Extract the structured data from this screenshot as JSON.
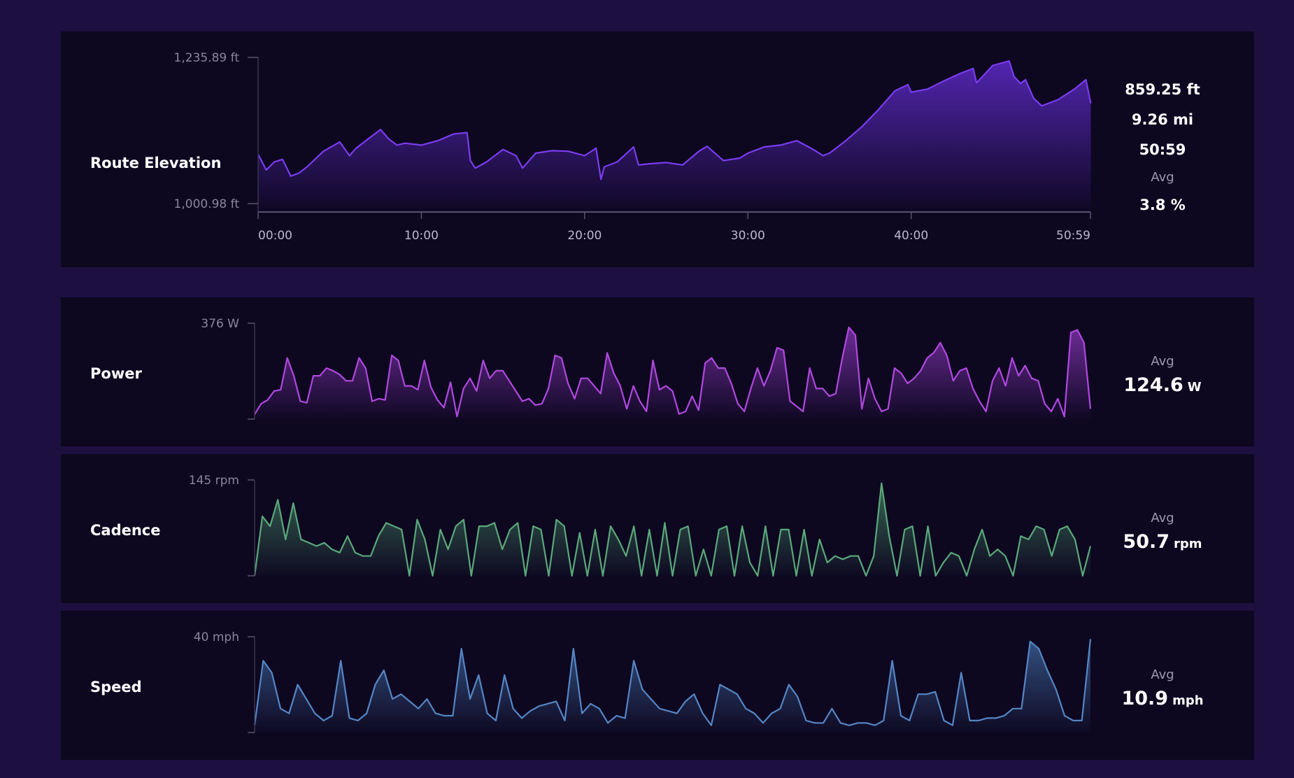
{
  "elevation": {
    "title": "Route Elevation",
    "stats": {
      "elevation": "859.25 ft",
      "distance": "9.26 mi",
      "duration": "50:59",
      "avg_label": "Avg",
      "avg_grade": "3.8 %"
    },
    "color": "#6a2fe0"
  },
  "power": {
    "title": "Power",
    "avg_label": "Avg",
    "avg_value": "124.6",
    "avg_unit": "W",
    "ymax_label": "376 W",
    "color": "#a040d6"
  },
  "cadence": {
    "title": "Cadence",
    "avg_label": "Avg",
    "avg_value": "50.7",
    "avg_unit": "rpm",
    "ymax_label": "145 rpm",
    "color": "#4f9a70"
  },
  "speed": {
    "title": "Speed",
    "avg_label": "Avg",
    "avg_value": "10.9",
    "avg_unit": "mph",
    "ymax_label": "40 mph",
    "color": "#4a7ab8"
  },
  "chart_data": [
    {
      "type": "area",
      "title": "Route Elevation",
      "x_unit": "minutes",
      "xtick_labels": [
        "00:00",
        "10:00",
        "20:00",
        "30:00",
        "40:00",
        "50:59"
      ],
      "xticks": [
        0,
        10,
        20,
        30,
        40,
        50.98
      ],
      "ytick_labels": [
        "1,235.89 ft",
        "1,000.98 ft"
      ],
      "ylim": [
        1000.98,
        1235.89
      ],
      "x": [
        0,
        0.5,
        1,
        1.5,
        2,
        2.5,
        3,
        4,
        5,
        5.6,
        6,
        7,
        7.5,
        8,
        8.5,
        9,
        10,
        11,
        12,
        12.8,
        13,
        13.3,
        14,
        15,
        15.8,
        16.2,
        17,
        18,
        19,
        20,
        20.7,
        21,
        21.2,
        22,
        23,
        23.3,
        24,
        25,
        26,
        27,
        27.5,
        28.5,
        29.5,
        30,
        31,
        32,
        33,
        34,
        34.6,
        35,
        36,
        37,
        38,
        39,
        39.8,
        40,
        41,
        42,
        43,
        43.8,
        44,
        45,
        46,
        46.3,
        46.7,
        47,
        47.5,
        48,
        49,
        50,
        50.7,
        51
      ],
      "y": [
        1080,
        1055,
        1068,
        1072,
        1045,
        1050,
        1060,
        1085,
        1100,
        1078,
        1090,
        1110,
        1120,
        1105,
        1095,
        1098,
        1095,
        1102,
        1113,
        1115,
        1070,
        1058,
        1068,
        1088,
        1078,
        1058,
        1082,
        1086,
        1085,
        1078,
        1090,
        1040,
        1060,
        1068,
        1092,
        1063,
        1065,
        1067,
        1063,
        1085,
        1093,
        1070,
        1074,
        1082,
        1092,
        1095,
        1102,
        1088,
        1078,
        1082,
        1102,
        1125,
        1152,
        1182,
        1192,
        1180,
        1185,
        1198,
        1210,
        1218,
        1195,
        1223,
        1230,
        1205,
        1194,
        1200,
        1170,
        1158,
        1168,
        1185,
        1200,
        1162
      ]
    },
    {
      "type": "area",
      "title": "Power",
      "ylim": [
        0,
        376
      ],
      "ymax_label": "376 W",
      "description_note": "",
      "series": [
        {
          "values": [
            18,
            60,
            75,
            110,
            115,
            240,
            170,
            70,
            64,
            170,
            170,
            200,
            190,
            175,
            150,
            150,
            240,
            200,
            70,
            80,
            75,
            250,
            230,
            130,
            130,
            115,
            230,
            125,
            75,
            45,
            145,
            10,
            120,
            160,
            110,
            230,
            160,
            190,
            190,
            150,
            110,
            70,
            80,
            55,
            60,
            120,
            250,
            240,
            140,
            80,
            160,
            160,
            130,
            100,
            260,
            180,
            130,
            40,
            130,
            70,
            30,
            230,
            115,
            130,
            110,
            20,
            30,
            90,
            35,
            220,
            240,
            200,
            200,
            140,
            60,
            30,
            120,
            200,
            130,
            190,
            280,
            270,
            70,
            50,
            30,
            200,
            120,
            120,
            90,
            100,
            240,
            360,
            330,
            40,
            160,
            80,
            30,
            40,
            200,
            180,
            140,
            160,
            190,
            240,
            260,
            300,
            250,
            150,
            190,
            200,
            120,
            70,
            30,
            150,
            200,
            130,
            240,
            170,
            210,
            160,
            150,
            60,
            30,
            80,
            10,
            340,
            350,
            300,
            40
          ]
        }
      ]
    },
    {
      "type": "area",
      "title": "Cadence",
      "ylim": [
        0,
        145
      ],
      "ymax_label": "145 rpm",
      "series": [
        {
          "values": [
            0,
            90,
            75,
            115,
            55,
            110,
            55,
            50,
            45,
            50,
            40,
            35,
            60,
            35,
            30,
            30,
            60,
            80,
            75,
            70,
            0,
            85,
            55,
            0,
            70,
            40,
            75,
            85,
            0,
            75,
            75,
            80,
            40,
            70,
            80,
            0,
            75,
            70,
            0,
            85,
            75,
            0,
            65,
            0,
            70,
            0,
            75,
            55,
            30,
            75,
            0,
            70,
            0,
            80,
            0,
            70,
            75,
            0,
            40,
            0,
            70,
            75,
            0,
            75,
            20,
            0,
            75,
            0,
            70,
            70,
            0,
            70,
            0,
            55,
            20,
            30,
            25,
            30,
            30,
            0,
            30,
            140,
            60,
            0,
            70,
            75,
            0,
            75,
            0,
            20,
            35,
            30,
            0,
            40,
            70,
            30,
            40,
            30,
            0,
            60,
            55,
            75,
            70,
            30,
            70,
            75,
            55,
            0,
            45
          ]
        }
      ]
    },
    {
      "type": "area",
      "title": "Speed",
      "ylim": [
        0,
        40
      ],
      "ymax_label": "40 mph",
      "series": [
        {
          "values": [
            3,
            30,
            25,
            10,
            8,
            20,
            14,
            8,
            5,
            7,
            30,
            6,
            5,
            8,
            20,
            26,
            14,
            16,
            13,
            10,
            14,
            8,
            7,
            7,
            35,
            14,
            24,
            8,
            5,
            24,
            10,
            6,
            9,
            11,
            12,
            13,
            5,
            35,
            8,
            12,
            10,
            4,
            7,
            6,
            30,
            18,
            14,
            10,
            9,
            8,
            13,
            16,
            8,
            3,
            20,
            18,
            16,
            10,
            8,
            4,
            8,
            10,
            20,
            15,
            5,
            4,
            4,
            10,
            4,
            3,
            4,
            4,
            3,
            5,
            30,
            7,
            5,
            16,
            16,
            17,
            5,
            3,
            25,
            5,
            5,
            6,
            6,
            7,
            10,
            10,
            38,
            35,
            26,
            18,
            7,
            5,
            5,
            39
          ]
        }
      ]
    }
  ]
}
